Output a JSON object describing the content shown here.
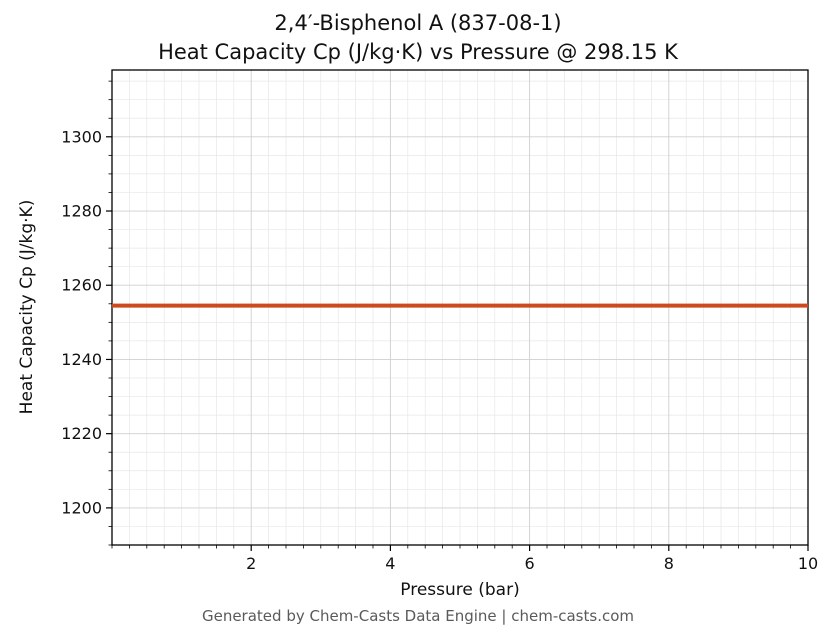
{
  "chart_data": {
    "type": "line",
    "title_line1": "2,4′-Bisphenol A (837-08-1)",
    "title_line2": "Heat Capacity Cp (J/kg·K) vs Pressure @ 298.15 K",
    "xlabel": "Pressure (bar)",
    "ylabel": "Heat Capacity Cp (J/kg·K)",
    "footer": "Generated by Chem-Casts Data Engine | chem-casts.com",
    "xlim": [
      0,
      10
    ],
    "ylim": [
      1190,
      1318
    ],
    "xticks": [
      2,
      4,
      6,
      8,
      10
    ],
    "yticks": [
      1200,
      1220,
      1240,
      1260,
      1280,
      1300
    ],
    "x_minor_step": 0.25,
    "y_minor_step": 5,
    "grid": true,
    "legend": "none",
    "axes_color": "#000000",
    "grid_major_color": "#cfcfcf",
    "grid_minor_color": "#e7e7e7",
    "series": [
      {
        "name": "Cp",
        "color": "#cd4a20",
        "line_width": 4,
        "x": [
          0,
          10
        ],
        "y": [
          1254.5,
          1254.5
        ]
      }
    ]
  }
}
